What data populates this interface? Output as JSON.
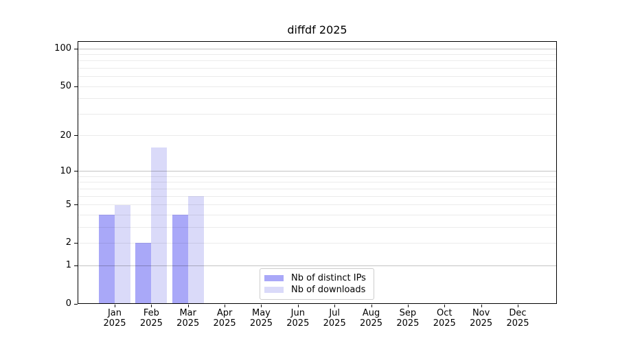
{
  "chart_data": {
    "type": "bar",
    "title": "diffdf 2025",
    "categories": [
      "Jan",
      "Feb",
      "Mar",
      "Apr",
      "May",
      "Jun",
      "Jul",
      "Aug",
      "Sep",
      "Oct",
      "Nov",
      "Dec"
    ],
    "category_year": "2025",
    "series": [
      {
        "name": "Nb of distinct IPs",
        "color": "#a9a8f8",
        "values": [
          4,
          2,
          4,
          0,
          0,
          0,
          0,
          0,
          0,
          0,
          0,
          0
        ]
      },
      {
        "name": "Nb of downloads",
        "color": "#dadaf9",
        "values": [
          5,
          16,
          6,
          0,
          0,
          0,
          0,
          0,
          0,
          0,
          0,
          0
        ]
      }
    ],
    "yscale": "log1p",
    "ylim": [
      0,
      115
    ],
    "ytick_labels": [
      0,
      1,
      2,
      5,
      10,
      20,
      50,
      100
    ],
    "gridlines_major": [
      1,
      10,
      100
    ],
    "gridlines_minor": [
      2,
      3,
      4,
      5,
      6,
      7,
      8,
      9,
      20,
      30,
      40,
      50,
      60,
      70,
      80,
      90
    ],
    "grid": true,
    "legend_position": "lower center",
    "colors": {
      "background": "#ffffff",
      "spine": "#000000",
      "legend_border": "#cccccc"
    }
  }
}
